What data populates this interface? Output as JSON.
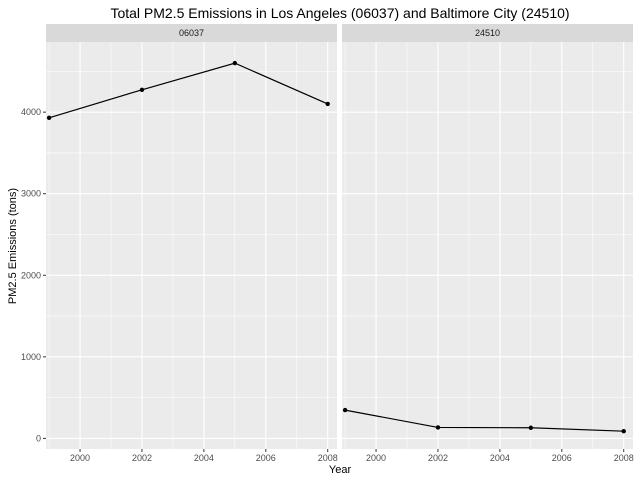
{
  "chart_data": {
    "type": "line",
    "title": "Total PM2.5 Emissions in Los Angeles (06037) and Baltimore City (24510)",
    "xlabel": "Year",
    "ylabel": "PM2.5 Emissions (tons)",
    "x_ticks": [
      "2000",
      "2002",
      "2004",
      "2006",
      "2008"
    ],
    "y_ticks": [
      "0",
      "1000",
      "2000",
      "3000",
      "4000"
    ],
    "xlim": [
      1998.9,
      2008.3
    ],
    "ylim": [
      -130,
      4860
    ],
    "grid": true,
    "panels": [
      {
        "name": "06037",
        "x": [
          1999,
          2002,
          2005,
          2008
        ],
        "y": [
          3931,
          4274,
          4601,
          4101
        ]
      },
      {
        "name": "24510",
        "x": [
          1999,
          2002,
          2005,
          2008
        ],
        "y": [
          346.8,
          134.3,
          130.4,
          88.3
        ]
      }
    ],
    "colors": {
      "panel_background": "#ebebeb",
      "strip_background": "#d9d9d9",
      "grid": "#ffffff",
      "line": "#000000",
      "point": "#000000"
    }
  }
}
